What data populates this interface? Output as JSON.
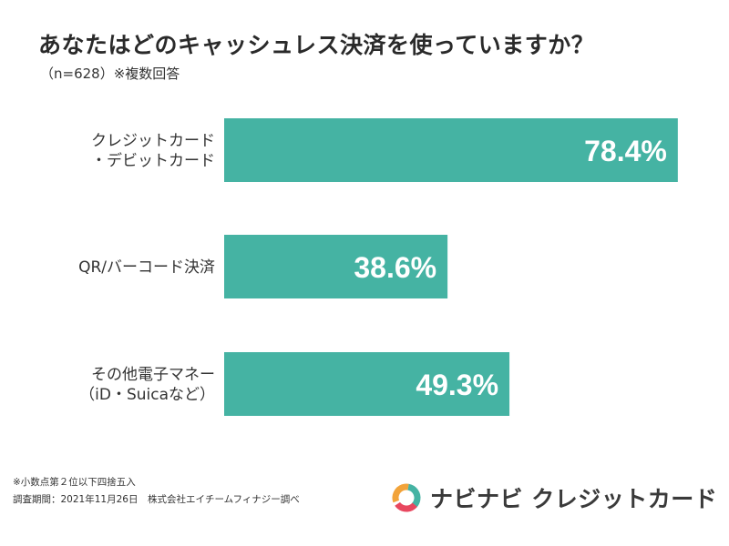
{
  "title": "あなたはどのキャッシュレス決済を使っていますか？",
  "subtitle": "（n=628）※複数回答",
  "chart_data": {
    "type": "bar",
    "orientation": "horizontal",
    "title": "あなたはどのキャッシュレス決済を使っていますか？",
    "categories": [
      [
        "クレジットカード",
        "・デビットカード"
      ],
      [
        "QR/バーコード決済"
      ],
      [
        "その他電子マネー",
        "（iD・Suicaなど）"
      ]
    ],
    "values": [
      78.4,
      38.6,
      49.3
    ],
    "value_labels": [
      "78.4%",
      "38.6%",
      "49.3%"
    ],
    "unit": "%",
    "xlim": [
      0,
      100
    ],
    "bar_color": "#45b3a3",
    "label_color": "#ffffff"
  },
  "footnotes": {
    "rounding": "※小数点第２位以下四捨五入",
    "survey": "調査期間：2021年11月26日　株式会社エイチームフィナジー調べ"
  },
  "logo": {
    "text": "ナビナビ クレジットカード",
    "colors": [
      "#f2a33a",
      "#45b3a3",
      "#e8475f"
    ]
  }
}
